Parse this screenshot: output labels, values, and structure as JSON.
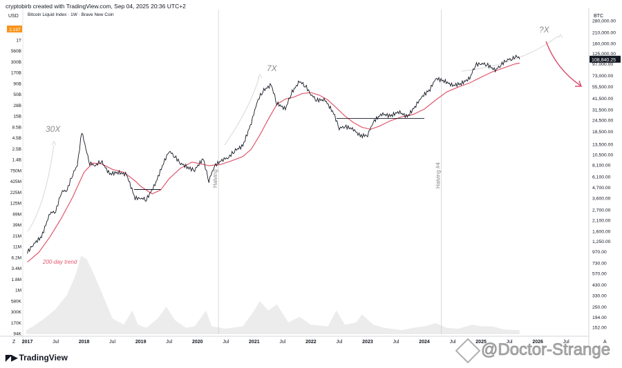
{
  "header": {
    "credit": "cryptobirb created with TradingView.com, Sep 04, 2025 20:36 UTC+2",
    "subtitle": "Bitcoin Liquid Index · 1W · Brave New Coin"
  },
  "brand": {
    "logo_text": "TradingView",
    "watermark": "@Doctor-Strange"
  },
  "colors": {
    "price": "#131722",
    "trend": "#e0566b",
    "volume": "#ececec",
    "price_tag": "#131722",
    "volume_tag": "#f7931a",
    "arrow": "#d94a6a",
    "annotation": "#8a8a8a"
  },
  "chart_data": {
    "type": "line",
    "title": "Bitcoin Liquid Index · 1W · Brave New Coin",
    "xlabel": "",
    "ylabel": "",
    "y_scale": "log",
    "ylim": [
      128,
      280000
    ],
    "left_axis_label": "USD",
    "right_axis_label": "BTC",
    "x_ticks": [
      {
        "label": "2017",
        "x": 2017.0
      },
      {
        "label": "Jul",
        "x": 2017.5
      },
      {
        "label": "2018",
        "x": 2018.0
      },
      {
        "label": "Jul",
        "x": 2018.5
      },
      {
        "label": "2019",
        "x": 2019.0
      },
      {
        "label": "Jul",
        "x": 2019.5
      },
      {
        "label": "2020",
        "x": 2020.0
      },
      {
        "label": "Jul",
        "x": 2020.5
      },
      {
        "label": "2021",
        "x": 2021.0
      },
      {
        "label": "Jul",
        "x": 2021.5
      },
      {
        "label": "2022",
        "x": 2022.0
      },
      {
        "label": "Jul",
        "x": 2022.5
      },
      {
        "label": "2023",
        "x": 2023.0
      },
      {
        "label": "Jul",
        "x": 2023.5
      },
      {
        "label": "2024",
        "x": 2024.0
      },
      {
        "label": "Jul",
        "x": 2024.5
      },
      {
        "label": "2025",
        "x": 2025.0
      },
      {
        "label": "Jul",
        "x": 2025.5
      },
      {
        "label": "2026",
        "x": 2026.0
      },
      {
        "label": "Jul",
        "x": 2026.5
      }
    ],
    "x_axis_left_marker": "Z",
    "x_axis_right_marker": "A",
    "right_ticks": [
      {
        "label": "280,000.00",
        "v": 280000
      },
      {
        "label": "210,000.00",
        "v": 210000
      },
      {
        "label": "160,000.00",
        "v": 160000
      },
      {
        "label": "125,000.00",
        "v": 125000
      },
      {
        "label": "97,000.00",
        "v": 97000
      },
      {
        "label": "73,000.00",
        "v": 73000
      },
      {
        "label": "55,500.00",
        "v": 55500
      },
      {
        "label": "41,500.00",
        "v": 41500
      },
      {
        "label": "31,500.00",
        "v": 31500
      },
      {
        "label": "24,500.00",
        "v": 24500
      },
      {
        "label": "18,500.00",
        "v": 18500
      },
      {
        "label": "13,500.00",
        "v": 13500
      },
      {
        "label": "10,500.00",
        "v": 10500
      },
      {
        "label": "8,100.00",
        "v": 8100
      },
      {
        "label": "6,100.00",
        "v": 6100
      },
      {
        "label": "4,700.00",
        "v": 4700
      },
      {
        "label": "3,600.00",
        "v": 3600
      },
      {
        "label": "2,700.00",
        "v": 2700
      },
      {
        "label": "2,100.00",
        "v": 2100
      },
      {
        "label": "1,600.00",
        "v": 1600
      },
      {
        "label": "1,250.00",
        "v": 1250
      },
      {
        "label": "970.00",
        "v": 970
      },
      {
        "label": "730.00",
        "v": 730
      },
      {
        "label": "570.00",
        "v": 570
      },
      {
        "label": "430.00",
        "v": 430
      },
      {
        "label": "330.00",
        "v": 330
      },
      {
        "label": "250.00",
        "v": 250
      },
      {
        "label": "194.00",
        "v": 194
      },
      {
        "label": "152.00",
        "v": 152
      }
    ],
    "left_ticks": [
      "2.19T",
      "1T",
      "560B",
      "300B",
      "170B",
      "90B",
      "50B",
      "28B",
      "15B",
      "8.5B",
      "4.5B",
      "2.5B",
      "1.4B",
      "750M",
      "425M",
      "225M",
      "125M",
      "69M",
      "39M",
      "21M",
      "11M",
      "6.2M",
      "3.4M",
      "1.8M",
      "1M",
      "580K",
      "300K",
      "170K",
      "94K"
    ],
    "left_tag": "2.19T",
    "last_price_label": "108,840.25",
    "last_price": 108840,
    "series": [
      {
        "name": "",
        "kind": "price",
        "points": [
          [
            2017.0,
            950
          ],
          [
            2017.1,
            1150
          ],
          [
            2017.25,
            1400
          ],
          [
            2017.4,
            2500
          ],
          [
            2017.5,
            2600
          ],
          [
            2017.6,
            4200
          ],
          [
            2017.7,
            4400
          ],
          [
            2017.8,
            6500
          ],
          [
            2017.88,
            8000
          ],
          [
            2017.96,
            18500
          ],
          [
            2018.05,
            11000
          ],
          [
            2018.1,
            8500
          ],
          [
            2018.2,
            8000
          ],
          [
            2018.3,
            9000
          ],
          [
            2018.45,
            6500
          ],
          [
            2018.6,
            6800
          ],
          [
            2018.75,
            6400
          ],
          [
            2018.9,
            3600
          ],
          [
            2019.0,
            3600
          ],
          [
            2019.1,
            3500
          ],
          [
            2019.25,
            5000
          ],
          [
            2019.4,
            8500
          ],
          [
            2019.5,
            11500
          ],
          [
            2019.6,
            10000
          ],
          [
            2019.7,
            8500
          ],
          [
            2019.85,
            7500
          ],
          [
            2019.95,
            7200
          ],
          [
            2020.1,
            9500
          ],
          [
            2020.2,
            5500
          ],
          [
            2020.3,
            8000
          ],
          [
            2020.45,
            9300
          ],
          [
            2020.55,
            9800
          ],
          [
            2020.65,
            11500
          ],
          [
            2020.8,
            13000
          ],
          [
            2020.95,
            23000
          ],
          [
            2021.05,
            38000
          ],
          [
            2021.15,
            50000
          ],
          [
            2021.3,
            58000
          ],
          [
            2021.4,
            37000
          ],
          [
            2021.55,
            32000
          ],
          [
            2021.65,
            47000
          ],
          [
            2021.8,
            63000
          ],
          [
            2021.9,
            57000
          ],
          [
            2022.0,
            46000
          ],
          [
            2022.1,
            40000
          ],
          [
            2022.25,
            40000
          ],
          [
            2022.4,
            29000
          ],
          [
            2022.5,
            20000
          ],
          [
            2022.6,
            21000
          ],
          [
            2022.75,
            19500
          ],
          [
            2022.87,
            16500
          ],
          [
            2023.0,
            17000
          ],
          [
            2023.1,
            23500
          ],
          [
            2023.25,
            28500
          ],
          [
            2023.4,
            27000
          ],
          [
            2023.55,
            30000
          ],
          [
            2023.7,
            26500
          ],
          [
            2023.85,
            35000
          ],
          [
            2023.95,
            43000
          ],
          [
            2024.1,
            52000
          ],
          [
            2024.2,
            68000
          ],
          [
            2024.35,
            64000
          ],
          [
            2024.5,
            57000
          ],
          [
            2024.65,
            60000
          ],
          [
            2024.8,
            68000
          ],
          [
            2024.9,
            95000
          ],
          [
            2025.0,
            98000
          ],
          [
            2025.1,
            96000
          ],
          [
            2025.25,
            83000
          ],
          [
            2025.35,
            95000
          ],
          [
            2025.45,
            107000
          ],
          [
            2025.55,
            110000
          ],
          [
            2025.6,
            118000
          ],
          [
            2025.65,
            115000
          ],
          [
            2025.68,
            108840
          ]
        ]
      },
      {
        "name": "200-day trend",
        "kind": "trend",
        "points": [
          [
            2017.0,
            750
          ],
          [
            2017.2,
            950
          ],
          [
            2017.4,
            1400
          ],
          [
            2017.6,
            2200
          ],
          [
            2017.8,
            3700
          ],
          [
            2018.0,
            6800
          ],
          [
            2018.15,
            8500
          ],
          [
            2018.3,
            8400
          ],
          [
            2018.5,
            7300
          ],
          [
            2018.7,
            6800
          ],
          [
            2018.9,
            5500
          ],
          [
            2019.0,
            4800
          ],
          [
            2019.2,
            4000
          ],
          [
            2019.35,
            4400
          ],
          [
            2019.5,
            5800
          ],
          [
            2019.7,
            7500
          ],
          [
            2019.9,
            8700
          ],
          [
            2020.0,
            8500
          ],
          [
            2020.2,
            8000
          ],
          [
            2020.4,
            8200
          ],
          [
            2020.6,
            9000
          ],
          [
            2020.8,
            10000
          ],
          [
            2020.95,
            12000
          ],
          [
            2021.1,
            17000
          ],
          [
            2021.25,
            25000
          ],
          [
            2021.4,
            36000
          ],
          [
            2021.55,
            41000
          ],
          [
            2021.7,
            43000
          ],
          [
            2021.85,
            47000
          ],
          [
            2022.0,
            48000
          ],
          [
            2022.15,
            45000
          ],
          [
            2022.3,
            40000
          ],
          [
            2022.45,
            33000
          ],
          [
            2022.6,
            27000
          ],
          [
            2022.75,
            23000
          ],
          [
            2022.9,
            20500
          ],
          [
            2023.05,
            19500
          ],
          [
            2023.2,
            21000
          ],
          [
            2023.4,
            24000
          ],
          [
            2023.6,
            26500
          ],
          [
            2023.8,
            28000
          ],
          [
            2024.0,
            32000
          ],
          [
            2024.2,
            40000
          ],
          [
            2024.4,
            49000
          ],
          [
            2024.6,
            55000
          ],
          [
            2024.8,
            61000
          ],
          [
            2025.0,
            70000
          ],
          [
            2025.2,
            80000
          ],
          [
            2025.4,
            88000
          ],
          [
            2025.6,
            97000
          ],
          [
            2025.68,
            99000
          ]
        ]
      },
      {
        "name": "",
        "kind": "volume",
        "points": [
          [
            2016.98,
            0.05
          ],
          [
            2017.1,
            0.1
          ],
          [
            2017.3,
            0.2
          ],
          [
            2017.5,
            0.32
          ],
          [
            2017.7,
            0.5
          ],
          [
            2017.85,
            0.75
          ],
          [
            2017.95,
            1.0
          ],
          [
            2018.05,
            0.95
          ],
          [
            2018.15,
            0.8
          ],
          [
            2018.3,
            0.55
          ],
          [
            2018.5,
            0.2
          ],
          [
            2018.7,
            0.12
          ],
          [
            2018.85,
            0.3
          ],
          [
            2018.95,
            0.12
          ],
          [
            2019.1,
            0.08
          ],
          [
            2019.3,
            0.2
          ],
          [
            2019.45,
            0.35
          ],
          [
            2019.6,
            0.18
          ],
          [
            2019.8,
            0.08
          ],
          [
            2019.95,
            0.1
          ],
          [
            2020.15,
            0.3
          ],
          [
            2020.25,
            0.1
          ],
          [
            2020.5,
            0.07
          ],
          [
            2020.8,
            0.1
          ],
          [
            2021.0,
            0.3
          ],
          [
            2021.1,
            0.42
          ],
          [
            2021.25,
            0.3
          ],
          [
            2021.4,
            0.38
          ],
          [
            2021.6,
            0.15
          ],
          [
            2021.8,
            0.22
          ],
          [
            2022.0,
            0.12
          ],
          [
            2022.3,
            0.1
          ],
          [
            2022.45,
            0.3
          ],
          [
            2022.6,
            0.12
          ],
          [
            2022.8,
            0.15
          ],
          [
            2022.9,
            0.25
          ],
          [
            2023.1,
            0.12
          ],
          [
            2023.3,
            0.08
          ],
          [
            2023.6,
            0.05
          ],
          [
            2023.8,
            0.08
          ],
          [
            2024.0,
            0.1
          ],
          [
            2024.2,
            0.14
          ],
          [
            2024.4,
            0.08
          ],
          [
            2024.6,
            0.07
          ],
          [
            2024.85,
            0.12
          ],
          [
            2025.0,
            0.1
          ],
          [
            2025.2,
            0.1
          ],
          [
            2025.4,
            0.06
          ],
          [
            2025.68,
            0.05
          ]
        ]
      }
    ],
    "vertical_markers": [
      {
        "x": 2020.37,
        "label": "Halving"
      },
      {
        "x": 2024.3,
        "label": "Halving #4"
      }
    ],
    "annotations": [
      {
        "text": "30X"
      },
      {
        "text": "7X"
      },
      {
        "text": "?X"
      },
      {
        "text": "200-day trend"
      }
    ]
  }
}
